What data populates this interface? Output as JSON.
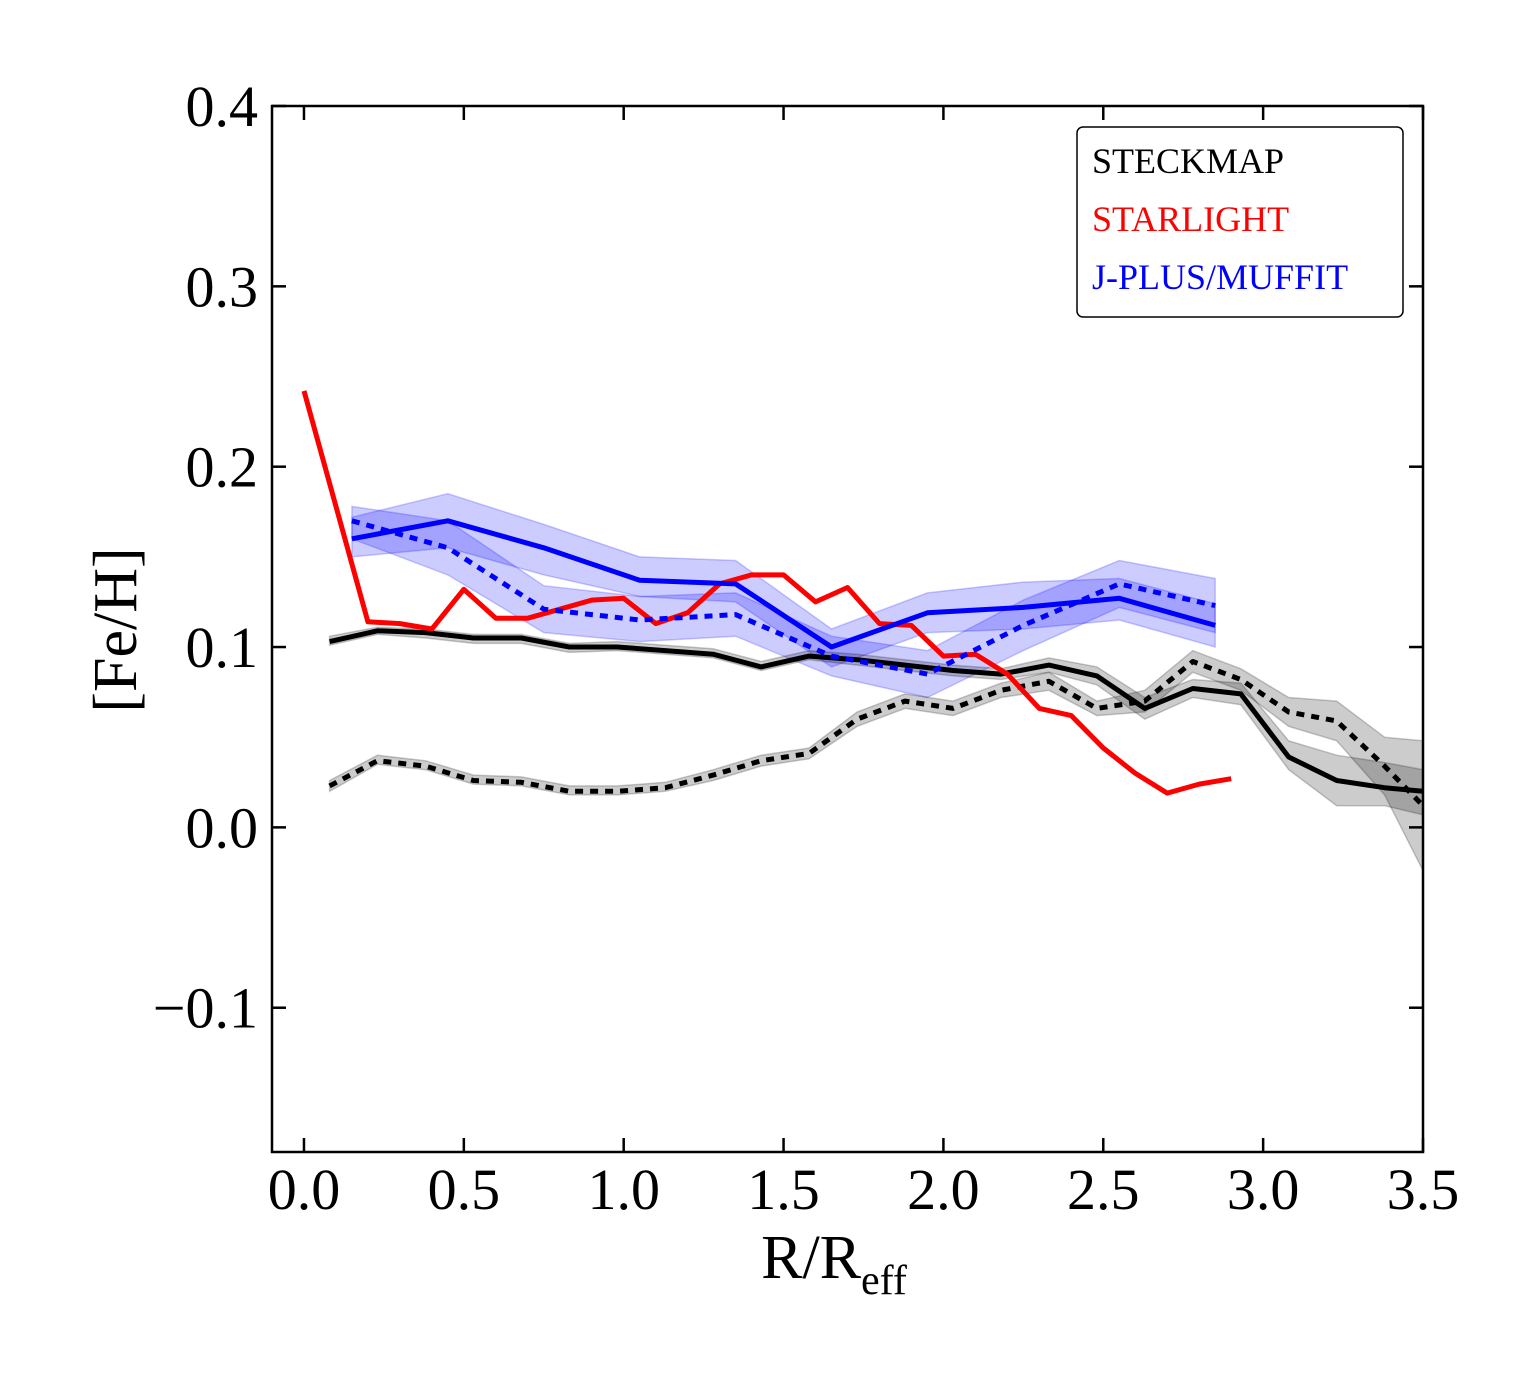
{
  "chart_data": {
    "type": "line",
    "title": "",
    "xlabel": "R/R",
    "xlabel_subscript": "eff",
    "ylabel": "[Fe/H]",
    "xlim": [
      -0.1,
      3.5
    ],
    "ylim": [
      -0.18,
      0.4
    ],
    "x_ticks": [
      0.0,
      0.5,
      1.0,
      1.5,
      2.0,
      2.5,
      3.0,
      3.5
    ],
    "x_tick_labels": [
      "0.0",
      "0.5",
      "1.0",
      "1.5",
      "2.0",
      "2.5",
      "3.0",
      "3.5"
    ],
    "y_ticks": [
      -0.1,
      0.0,
      0.1,
      0.2,
      0.3,
      0.4
    ],
    "y_tick_labels": [
      "−0.1",
      "0.0",
      "0.1",
      "0.2",
      "0.3",
      "0.4"
    ],
    "grid": false,
    "legend_position": "top-right",
    "legend": [
      {
        "label": "STECKMAP",
        "color": "#000000"
      },
      {
        "label": "STARLIGHT",
        "color": "#ff0000"
      },
      {
        "label": "J-PLUS/MUFFIT",
        "color": "#0000ff"
      }
    ],
    "series": [
      {
        "name": "J-PLUS/MUFFIT band (solid)",
        "kind": "band",
        "color": "#0000ff",
        "opacity": 0.2,
        "x": [
          0.15,
          0.45,
          0.75,
          1.05,
          1.35,
          1.65,
          1.95,
          2.25,
          2.55,
          2.85
        ],
        "lower": [
          0.15,
          0.155,
          0.14,
          0.128,
          0.125,
          0.089,
          0.108,
          0.11,
          0.115,
          0.1
        ],
        "upper": [
          0.172,
          0.185,
          0.168,
          0.15,
          0.148,
          0.11,
          0.13,
          0.136,
          0.138,
          0.124
        ]
      },
      {
        "name": "J-PLUS/MUFFIT band (dotted)",
        "kind": "band",
        "color": "#0000ff",
        "opacity": 0.2,
        "x": [
          0.15,
          0.45,
          0.75,
          1.05,
          1.35,
          1.65,
          1.95,
          2.25,
          2.55,
          2.85
        ],
        "lower": [
          0.16,
          0.14,
          0.108,
          0.103,
          0.106,
          0.084,
          0.072,
          0.098,
          0.122,
          0.108
        ],
        "upper": [
          0.178,
          0.17,
          0.134,
          0.128,
          0.13,
          0.106,
          0.098,
          0.126,
          0.148,
          0.138
        ]
      },
      {
        "name": "STECKMAP band (dotted)",
        "kind": "band",
        "color": "#000000",
        "opacity": 0.2,
        "x": [
          0.08,
          0.23,
          0.38,
          0.53,
          0.68,
          0.83,
          0.98,
          1.13,
          1.28,
          1.43,
          1.58,
          1.73,
          1.88,
          2.03,
          2.18,
          2.33,
          2.48,
          2.63,
          2.78,
          2.93,
          3.08,
          3.23,
          3.38,
          3.5
        ],
        "lower": [
          0.02,
          0.035,
          0.032,
          0.024,
          0.023,
          0.018,
          0.018,
          0.02,
          0.026,
          0.034,
          0.038,
          0.056,
          0.066,
          0.062,
          0.072,
          0.076,
          0.062,
          0.064,
          0.086,
          0.076,
          0.056,
          0.048,
          0.018,
          -0.024
        ],
        "upper": [
          0.026,
          0.04,
          0.037,
          0.029,
          0.028,
          0.023,
          0.023,
          0.025,
          0.032,
          0.04,
          0.044,
          0.064,
          0.074,
          0.07,
          0.08,
          0.086,
          0.07,
          0.076,
          0.098,
          0.088,
          0.072,
          0.07,
          0.05,
          0.048
        ]
      },
      {
        "name": "STECKMAP band (solid)",
        "kind": "band",
        "color": "#000000",
        "opacity": 0.2,
        "x": [
          0.08,
          0.23,
          0.38,
          0.53,
          0.68,
          0.83,
          0.98,
          1.13,
          1.28,
          1.43,
          1.58,
          1.73,
          1.88,
          2.03,
          2.18,
          2.33,
          2.48,
          2.63,
          2.78,
          2.93,
          3.08,
          3.23,
          3.38,
          3.5
        ],
        "lower": [
          0.101,
          0.107,
          0.105,
          0.102,
          0.102,
          0.097,
          0.098,
          0.096,
          0.094,
          0.087,
          0.093,
          0.09,
          0.087,
          0.084,
          0.082,
          0.086,
          0.079,
          0.06,
          0.072,
          0.068,
          0.032,
          0.012,
          0.012,
          0.007
        ],
        "upper": [
          0.106,
          0.111,
          0.11,
          0.107,
          0.107,
          0.102,
          0.103,
          0.101,
          0.099,
          0.092,
          0.098,
          0.096,
          0.093,
          0.09,
          0.088,
          0.094,
          0.089,
          0.072,
          0.082,
          0.08,
          0.048,
          0.04,
          0.036,
          0.032
        ]
      },
      {
        "name": "STECKMAP (dotted)",
        "kind": "line",
        "color": "#000000",
        "dash": "dotted",
        "x": [
          0.08,
          0.23,
          0.38,
          0.53,
          0.68,
          0.83,
          0.98,
          1.13,
          1.28,
          1.43,
          1.58,
          1.73,
          1.88,
          2.03,
          2.18,
          2.33,
          2.48,
          2.63,
          2.78,
          2.93,
          3.08,
          3.23,
          3.38,
          3.5
        ],
        "y": [
          0.023,
          0.037,
          0.034,
          0.026,
          0.025,
          0.02,
          0.02,
          0.022,
          0.029,
          0.037,
          0.041,
          0.06,
          0.07,
          0.066,
          0.076,
          0.081,
          0.066,
          0.07,
          0.092,
          0.082,
          0.064,
          0.059,
          0.034,
          0.012
        ]
      },
      {
        "name": "STECKMAP (solid)",
        "kind": "line",
        "color": "#000000",
        "dash": "solid",
        "x": [
          0.08,
          0.23,
          0.38,
          0.53,
          0.68,
          0.83,
          0.98,
          1.13,
          1.28,
          1.43,
          1.58,
          1.73,
          1.88,
          2.03,
          2.18,
          2.33,
          2.48,
          2.63,
          2.78,
          2.93,
          3.08,
          3.23,
          3.38,
          3.5
        ],
        "y": [
          0.103,
          0.109,
          0.108,
          0.105,
          0.105,
          0.1,
          0.1,
          0.098,
          0.096,
          0.089,
          0.095,
          0.093,
          0.09,
          0.087,
          0.085,
          0.09,
          0.084,
          0.066,
          0.077,
          0.074,
          0.039,
          0.026,
          0.022,
          0.02
        ]
      },
      {
        "name": "STARLIGHT",
        "kind": "line",
        "color": "#ff0000",
        "dash": "solid",
        "x": [
          0.0,
          0.2,
          0.3,
          0.4,
          0.5,
          0.6,
          0.7,
          0.8,
          0.9,
          1.0,
          1.1,
          1.2,
          1.3,
          1.4,
          1.5,
          1.6,
          1.7,
          1.8,
          1.9,
          2.0,
          2.1,
          2.2,
          2.3,
          2.4,
          2.5,
          2.6,
          2.7,
          2.8,
          2.9
        ],
        "y": [
          0.242,
          0.114,
          0.113,
          0.11,
          0.132,
          0.116,
          0.116,
          0.121,
          0.126,
          0.127,
          0.113,
          0.119,
          0.135,
          0.14,
          0.14,
          0.125,
          0.133,
          0.113,
          0.112,
          0.095,
          0.096,
          0.085,
          0.066,
          0.062,
          0.044,
          0.03,
          0.019,
          0.024,
          0.027
        ]
      },
      {
        "name": "J-PLUS/MUFFIT (dotted)",
        "kind": "line",
        "color": "#0000ff",
        "dash": "dotted",
        "x": [
          0.15,
          0.45,
          0.75,
          1.05,
          1.35,
          1.65,
          1.95,
          2.25,
          2.55,
          2.85
        ],
        "y": [
          0.17,
          0.155,
          0.121,
          0.115,
          0.118,
          0.095,
          0.085,
          0.112,
          0.135,
          0.123
        ]
      },
      {
        "name": "J-PLUS/MUFFIT (solid)",
        "kind": "line",
        "color": "#0000ff",
        "dash": "solid",
        "x": [
          0.15,
          0.45,
          0.75,
          1.05,
          1.35,
          1.65,
          1.95,
          2.25,
          2.55,
          2.85
        ],
        "y": [
          0.16,
          0.17,
          0.155,
          0.137,
          0.135,
          0.1,
          0.119,
          0.122,
          0.127,
          0.112
        ]
      }
    ]
  }
}
